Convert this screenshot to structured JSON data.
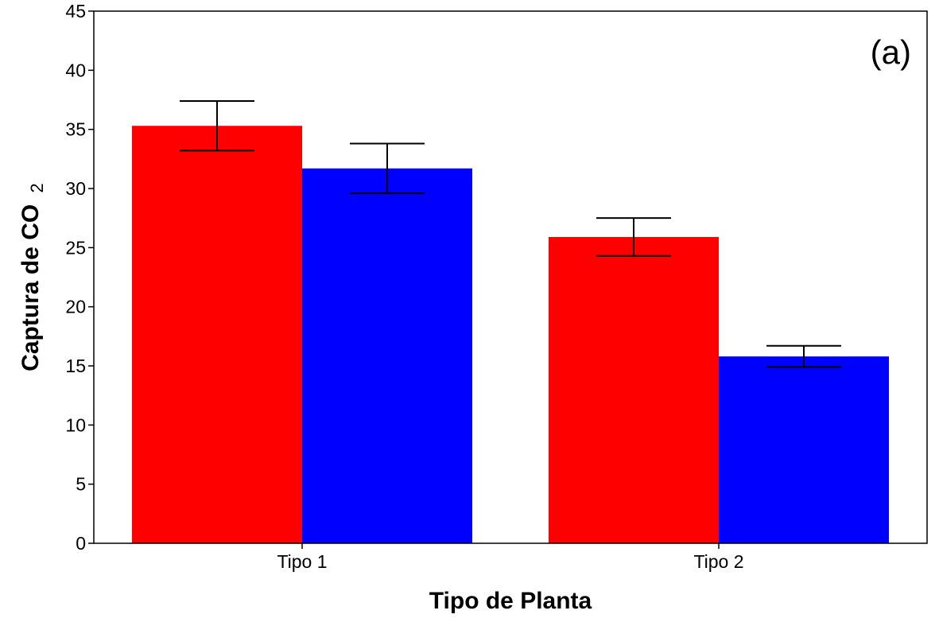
{
  "chart_data": {
    "type": "bar",
    "panel_label": "(a)",
    "title": "",
    "xlabel": "Tipo de Planta",
    "ylabel": "Captura de CO",
    "ylabel_subscript": "2",
    "categories": [
      "Tipo 1",
      "Tipo 2"
    ],
    "ylim": [
      0,
      45
    ],
    "yticks": [
      0,
      5,
      10,
      15,
      20,
      25,
      30,
      35,
      40,
      45
    ],
    "grid": false,
    "legend": "none",
    "series": [
      {
        "color": "#ff0000",
        "values": [
          35.3,
          25.9
        ],
        "error_low": [
          33.2,
          24.3
        ],
        "error_high": [
          37.4,
          27.5
        ]
      },
      {
        "color": "#0000ff",
        "values": [
          31.7,
          15.8
        ],
        "error_low": [
          29.6,
          14.9
        ],
        "error_high": [
          33.8,
          16.7
        ]
      }
    ]
  }
}
